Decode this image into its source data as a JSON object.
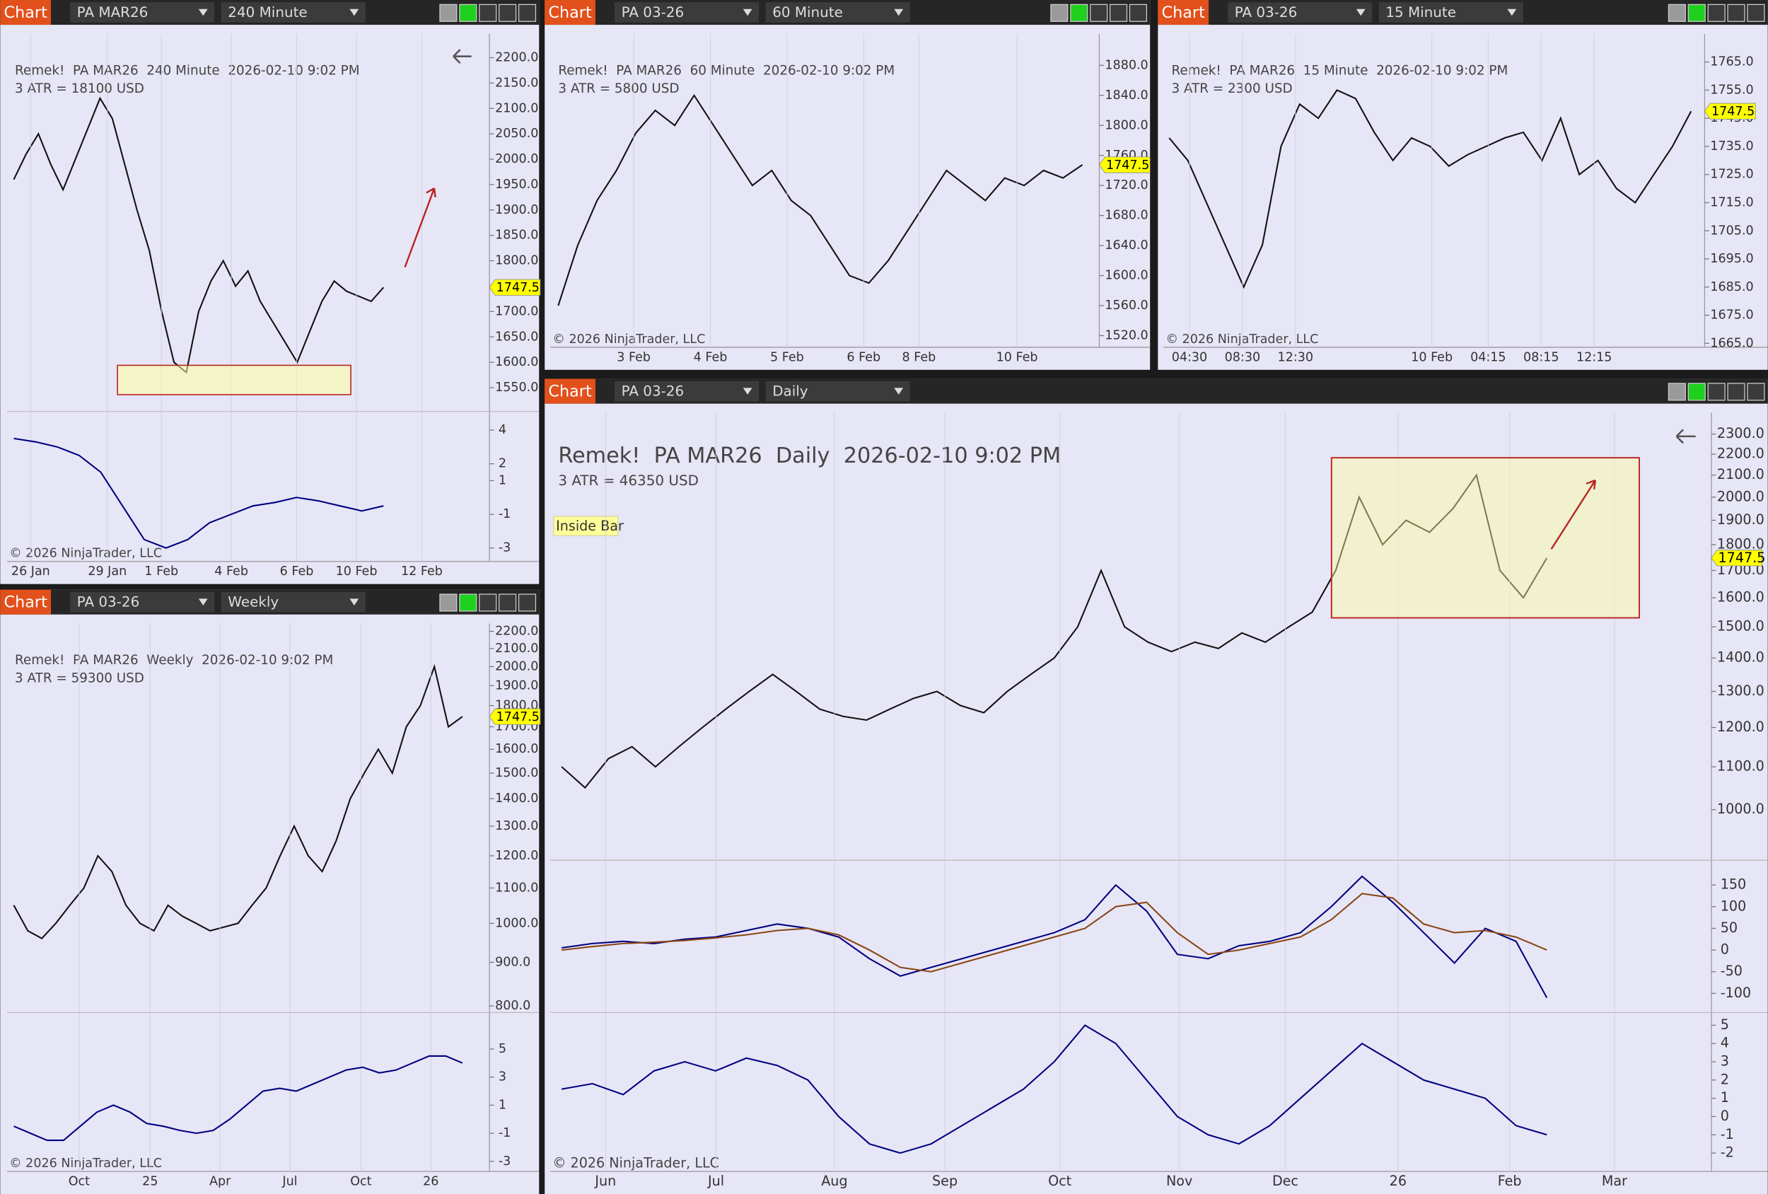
{
  "windows": [
    {
      "tab": "Chart",
      "instrument": "PA MAR26",
      "interval": "240 Minute",
      "title": "Remek!  PA MAR26  240 Minute  2026-02-10 9:02 PM",
      "atr": "3 ATR = 18100 USD",
      "copyright": "© 2026 NinjaTrader, LLC",
      "last_price": 1747.5,
      "ylim": [
        1503,
        2247
      ],
      "log_scale": false,
      "price_ticks": [
        {
          "value": 2200,
          "label": "2200.0"
        },
        {
          "value": 2150,
          "label": "2150.0"
        },
        {
          "value": 2100,
          "label": "2100.0"
        },
        {
          "value": 2050,
          "label": "2050.0"
        },
        {
          "value": 2000,
          "label": "2000.0"
        },
        {
          "value": 1950,
          "label": "1950.0"
        },
        {
          "value": 1900,
          "label": "1900.0"
        },
        {
          "value": 1850,
          "label": "1850.0"
        },
        {
          "value": 1800,
          "label": "1800.0"
        },
        {
          "value": 1750,
          "label": "1750.0"
        },
        {
          "value": 1700,
          "label": "1700.0"
        },
        {
          "value": 1650,
          "label": "1650.0"
        },
        {
          "value": 1600,
          "label": "1600.0"
        },
        {
          "value": 1550,
          "label": "1550.0"
        }
      ],
      "time_labels": [
        "26 Jan",
        "29 Jan",
        "1 Feb",
        "4 Feb",
        "6 Feb",
        "10 Feb",
        "12 Feb"
      ],
      "closes": [
        1960,
        2010,
        2050,
        1990,
        1940,
        2000,
        2060,
        2120,
        2080,
        1990,
        1900,
        1820,
        1700,
        1600,
        1580,
        1700,
        1760,
        1800,
        1750,
        1780,
        1720,
        1680,
        1640,
        1600,
        1660,
        1720,
        1760,
        1740,
        1730,
        1720,
        1747.5
      ],
      "indicators": [
        {
          "ylim": [
            -3.8,
            5.1
          ],
          "yticks": [
            4,
            2,
            1,
            -1,
            -3
          ],
          "series": [
            {
              "color": "#000080",
              "values": [
                3.5,
                3.3,
                3,
                2.5,
                1.5,
                -0.5,
                -2.5,
                -3,
                -2.5,
                -1.5,
                -1,
                -0.5,
                -0.3,
                0,
                -0.2,
                -0.5,
                -0.8,
                -0.5
              ]
            }
          ]
        }
      ]
    },
    {
      "tab": "Chart",
      "instrument": "PA 03-26",
      "interval": "60 Minute",
      "title": "Remek!  PA MAR26  60 Minute  2026-02-10 9:02 PM",
      "atr": "3 ATR = 5800 USD",
      "copyright": "© 2026 NinjaTrader, LLC",
      "last_price": 1747.5,
      "ylim": [
        1506,
        1922
      ],
      "log_scale": false,
      "price_ticks": [
        {
          "value": 1880,
          "label": "1880.0"
        },
        {
          "value": 1840,
          "label": "1840.0"
        },
        {
          "value": 1800,
          "label": "1800.0"
        },
        {
          "value": 1760,
          "label": "1760.0"
        },
        {
          "value": 1720,
          "label": "1720.0"
        },
        {
          "value": 1680,
          "label": "1680.0"
        },
        {
          "value": 1640,
          "label": "1640.0"
        },
        {
          "value": 1600,
          "label": "1600.0"
        },
        {
          "value": 1560,
          "label": "1560.0"
        },
        {
          "value": 1520,
          "label": "1520.0"
        }
      ],
      "time_labels": [
        "3 Feb",
        "4 Feb",
        "5 Feb",
        "6 Feb",
        "8 Feb",
        "10 Feb"
      ],
      "closes": [
        1560,
        1640,
        1700,
        1740,
        1790,
        1820,
        1800,
        1840,
        1800,
        1760,
        1720,
        1740,
        1700,
        1680,
        1640,
        1600,
        1590,
        1620,
        1660,
        1700,
        1740,
        1720,
        1700,
        1730,
        1720,
        1740,
        1730,
        1747.5
      ],
      "indicators": []
    },
    {
      "tab": "Chart",
      "instrument": "PA 03-26",
      "interval": "15 Minute",
      "title": "Remek!  PA MAR26  15 Minute  2026-02-10 9:02 PM",
      "atr": "3 ATR = 2300 USD",
      "copyright": "© 2026 NinjaTrader, LLC",
      "last_price": 1747.5,
      "ylim": [
        1664,
        1775
      ],
      "log_scale": false,
      "price_ticks": [
        {
          "value": 1765,
          "label": "1765.0"
        },
        {
          "value": 1755,
          "label": "1755.0"
        },
        {
          "value": 1745,
          "label": "1745.0"
        },
        {
          "value": 1735,
          "label": "1735.0"
        },
        {
          "value": 1725,
          "label": "1725.0"
        },
        {
          "value": 1715,
          "label": "1715.0"
        },
        {
          "value": 1705,
          "label": "1705.0"
        },
        {
          "value": 1695,
          "label": "1695.0"
        },
        {
          "value": 1685,
          "label": "1685.0"
        },
        {
          "value": 1675,
          "label": "1675.0"
        },
        {
          "value": 1665,
          "label": "1665.0"
        }
      ],
      "time_labels": [
        "04:30",
        "08:30",
        "12:30",
        "10 Feb",
        "04:15",
        "08:15",
        "12:15"
      ],
      "closes": [
        1738,
        1730,
        1715,
        1700,
        1685,
        1700,
        1735,
        1750,
        1745,
        1755,
        1752,
        1740,
        1730,
        1738,
        1735,
        1728,
        1732,
        1735,
        1738,
        1740,
        1730,
        1745,
        1725,
        1730,
        1720,
        1715,
        1725,
        1735,
        1747.5
      ],
      "indicators": []
    },
    {
      "tab": "Chart",
      "instrument": "PA 03-26",
      "interval": "Weekly",
      "title": "Remek!  PA MAR26  Weekly  2026-02-10 9:02 PM",
      "atr": "3 ATR = 59300 USD",
      "copyright": "© 2026 NinjaTrader, LLC",
      "last_price": 1747.5,
      "ylim": [
        786,
        2247
      ],
      "log_scale": true,
      "price_ticks": [
        {
          "value": 2200,
          "label": "2200.0"
        },
        {
          "value": 2100,
          "label": "2100.0"
        },
        {
          "value": 2000,
          "label": "2000.0"
        },
        {
          "value": 1900,
          "label": "1900.0"
        },
        {
          "value": 1800,
          "label": "1800.0"
        },
        {
          "value": 1700,
          "label": "1700.0"
        },
        {
          "value": 1600,
          "label": "1600.0"
        },
        {
          "value": 1500,
          "label": "1500.0"
        },
        {
          "value": 1400,
          "label": "1400.0"
        },
        {
          "value": 1300,
          "label": "1300.0"
        },
        {
          "value": 1200,
          "label": "1200.0"
        },
        {
          "value": 1100,
          "label": "1100.0"
        },
        {
          "value": 1000,
          "label": "1000.0"
        },
        {
          "value": 900,
          "label": "900.0"
        },
        {
          "value": 800,
          "label": "800.0"
        }
      ],
      "time_labels": [
        "Oct",
        "25",
        "Apr",
        "Jul",
        "Oct",
        "26"
      ],
      "closes": [
        1050,
        980,
        960,
        1000,
        1050,
        1100,
        1200,
        1150,
        1050,
        1000,
        980,
        1050,
        1020,
        1000,
        980,
        990,
        1000,
        1050,
        1100,
        1200,
        1300,
        1200,
        1150,
        1250,
        1400,
        1500,
        1600,
        1500,
        1700,
        1800,
        2000,
        1700,
        1747.5
      ],
      "indicators": [
        {
          "ylim": [
            -3.8,
            7.6
          ],
          "yticks": [
            5,
            3,
            1,
            -1,
            -3
          ],
          "series": [
            {
              "color": "#000080",
              "values": [
                -0.5,
                -1,
                -1.5,
                -1.5,
                -0.5,
                0.5,
                1,
                0.5,
                -0.3,
                -0.5,
                -0.8,
                -1,
                -0.8,
                0,
                1,
                2,
                2.2,
                2,
                2.5,
                3,
                3.5,
                3.7,
                3.3,
                3.5,
                4,
                4.5,
                4.5,
                4
              ]
            }
          ]
        }
      ]
    },
    {
      "tab": "Chart",
      "instrument": "PA 03-26",
      "interval": "Daily",
      "title": "Remek!  PA MAR26  Daily  2026-02-10 9:02 PM",
      "atr": "3 ATR = 46350 USD",
      "copyright": "© 2026 NinjaTrader, LLC",
      "last_price": 1747.5,
      "annotation": "Inside Bar",
      "ylim": [
        894,
        2412
      ],
      "log_scale": true,
      "price_ticks": [
        {
          "value": 2300,
          "label": "2300.0"
        },
        {
          "value": 2200,
          "label": "2200.0"
        },
        {
          "value": 2100,
          "label": "2100.0"
        },
        {
          "value": 2000,
          "label": "2000.0"
        },
        {
          "value": 1900,
          "label": "1900.0"
        },
        {
          "value": 1800,
          "label": "1800.0"
        },
        {
          "value": 1700,
          "label": "1700.0"
        },
        {
          "value": 1600,
          "label": "1600.0"
        },
        {
          "value": 1500,
          "label": "1500.0"
        },
        {
          "value": 1400,
          "label": "1400.0"
        },
        {
          "value": 1300,
          "label": "1300.0"
        },
        {
          "value": 1200,
          "label": "1200.0"
        },
        {
          "value": 1100,
          "label": "1100.0"
        },
        {
          "value": 1000,
          "label": "1000.0"
        }
      ],
      "time_labels": [
        "Jun",
        "Jul",
        "Aug",
        "Sep",
        "Oct",
        "Nov",
        "Dec",
        "26",
        "Feb",
        "Mar"
      ],
      "closes": [
        1100,
        1050,
        1120,
        1150,
        1100,
        1150,
        1200,
        1250,
        1300,
        1350,
        1300,
        1250,
        1230,
        1220,
        1250,
        1280,
        1300,
        1260,
        1240,
        1300,
        1350,
        1400,
        1500,
        1700,
        1500,
        1450,
        1420,
        1450,
        1430,
        1480,
        1450,
        1500,
        1550,
        1700,
        2000,
        1800,
        1900,
        1850,
        1950,
        2100,
        1700,
        1600,
        1747.5
      ],
      "indicators": [
        {
          "ylim": [
            -144,
            207
          ],
          "yticks": [
            150,
            100,
            50,
            0,
            -50,
            -100
          ],
          "series": [
            {
              "color": "#000080",
              "values": [
                5,
                15,
                20,
                15,
                25,
                30,
                45,
                60,
                50,
                30,
                -20,
                -60,
                -40,
                -20,
                0,
                20,
                40,
                70,
                150,
                90,
                -10,
                -20,
                10,
                20,
                40,
                100,
                170,
                110,
                40,
                -30,
                50,
                20,
                -110
              ]
            },
            {
              "color": "#8b4513",
              "values": [
                0,
                8,
                15,
                18,
                22,
                28,
                35,
                45,
                50,
                35,
                0,
                -40,
                -50,
                -30,
                -10,
                10,
                30,
                50,
                100,
                110,
                40,
                -10,
                0,
                15,
                30,
                70,
                130,
                120,
                60,
                40,
                45,
                30,
                0
              ]
            }
          ]
        },
        {
          "ylim": [
            -2.7,
            5.7
          ],
          "yticks": [
            5,
            4,
            3,
            2,
            1,
            0,
            -1,
            -2
          ],
          "series": [
            {
              "color": "#000080",
              "values": [
                1.5,
                1.8,
                1.2,
                2.5,
                3,
                2.5,
                3.2,
                2.8,
                2,
                0,
                -1.5,
                -2,
                -1.5,
                -0.5,
                0.5,
                1.5,
                3,
                5,
                4,
                2,
                0,
                -1,
                -1.5,
                -0.5,
                1,
                2.5,
                4,
                3,
                2,
                1.5,
                1,
                -0.5,
                -1
              ]
            }
          ]
        }
      ]
    }
  ]
}
